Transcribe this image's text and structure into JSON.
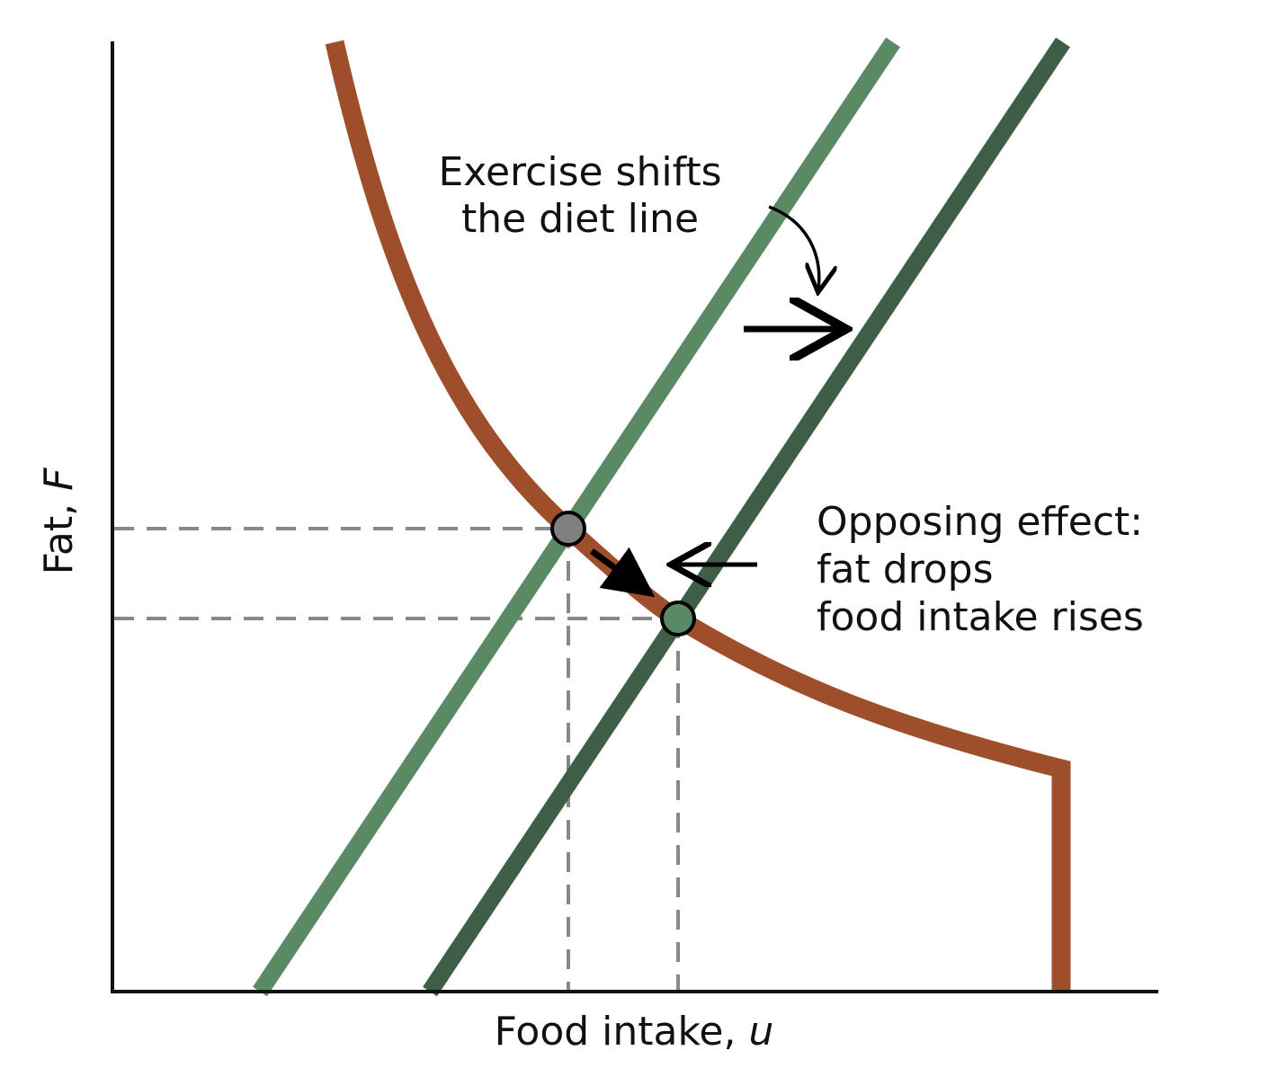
{
  "figure": {
    "x_axis_label": "Food intake, ",
    "x_axis_symbol": "u",
    "y_axis_label": "Fat, ",
    "y_axis_symbol": "F",
    "annotation_shift": {
      "line1": "Exercise shifts",
      "line2": "the diet line"
    },
    "annotation_opposing": {
      "line1": "Opposing effect:",
      "line2": "fat drops",
      "line3": "food intake rises"
    }
  },
  "colors": {
    "fat_curve": "#9e4e2b",
    "diet_line_before": "#5a8a64",
    "diet_line_after": "#3e5e48",
    "guide_lines": "#888888",
    "point_before": "#808080",
    "point_after": "#5a8a64",
    "axes": "#111111"
  }
}
